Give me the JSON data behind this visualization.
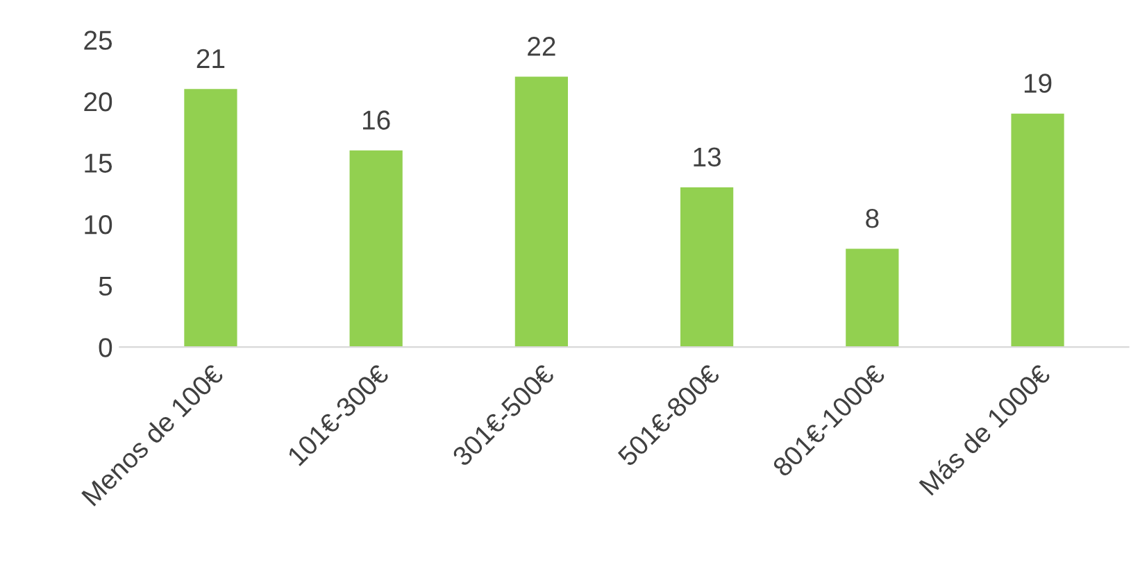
{
  "chart_data": {
    "type": "bar",
    "categories": [
      "Menos de 100€",
      "101€-300€",
      "301€-500€",
      "501€-800€",
      "801€-1000€",
      "Más de 1000€"
    ],
    "values": [
      21,
      16,
      22,
      13,
      8,
      19
    ],
    "color": "#92d050",
    "ylim": [
      0,
      25
    ],
    "yticks": [
      0,
      5,
      10,
      15,
      20,
      25
    ],
    "grid": false,
    "data_labels": true
  }
}
